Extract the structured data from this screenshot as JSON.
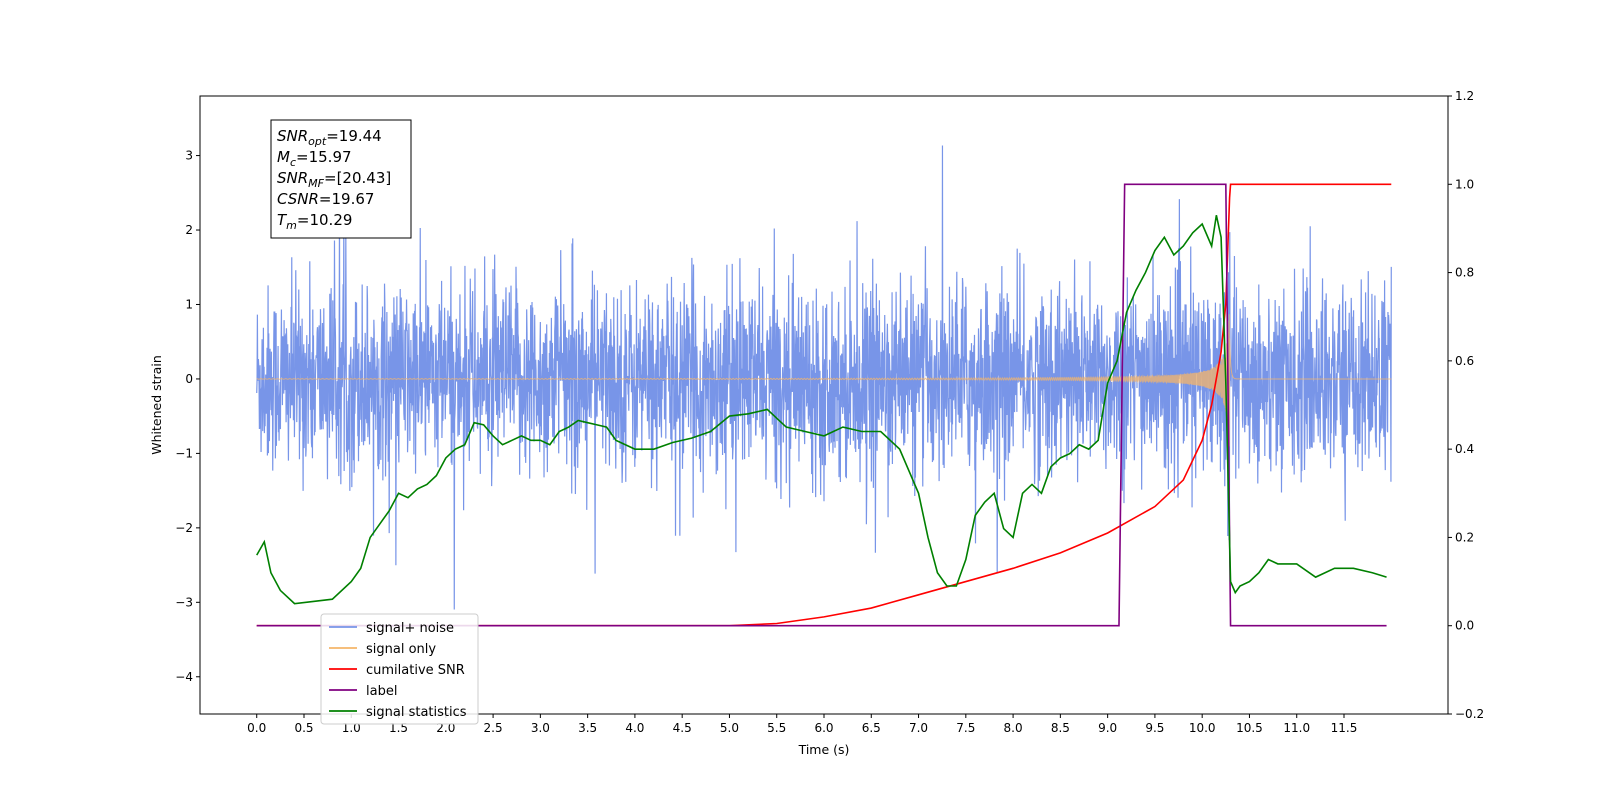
{
  "chart_data": {
    "type": "line",
    "xlabel": "Time (s)",
    "ylabel": "Whitened strain",
    "xlim": [
      -0.6,
      12.6
    ],
    "ylim": [
      -4.5,
      3.8
    ],
    "y2lim": [
      -0.2,
      1.2
    ],
    "x_ticks": [
      "0.0",
      "0.5",
      "1.0",
      "1.5",
      "2.0",
      "2.5",
      "3.0",
      "3.5",
      "4.0",
      "4.5",
      "5.0",
      "5.5",
      "6.0",
      "6.5",
      "7.0",
      "7.5",
      "8.0",
      "8.5",
      "9.0",
      "9.5",
      "10.0",
      "10.5",
      "11.0",
      "11.5"
    ],
    "y_ticks": [
      "3",
      "2",
      "1",
      "0",
      "−1",
      "−2",
      "−3",
      "−4"
    ],
    "y2_ticks": [
      "1.2",
      "1.0",
      "0.8",
      "0.6",
      "0.4",
      "0.2",
      "0.0",
      "−0.2"
    ],
    "legend_position": "lower-left",
    "annotation_box": {
      "lines": [
        {
          "base": "SNR",
          "sub": "opt",
          "value": "=19.44"
        },
        {
          "base": "M",
          "sub": "c",
          "value": "=15.97"
        },
        {
          "base": "SNR",
          "sub": "MF",
          "value": "=[20.43]"
        },
        {
          "base": "CSNR",
          "sub": "",
          "value": "=19.67"
        },
        {
          "base": "T",
          "sub": "m",
          "value": "=10.29"
        }
      ]
    },
    "series": [
      {
        "name": "signal+ noise",
        "color": "#7895e8",
        "axis": "left",
        "kind": "noise",
        "x_range": [
          0.0,
          12.0
        ],
        "typical_range": [
          -1.6,
          1.6
        ],
        "peak_range": [
          -4.1,
          3.5
        ]
      },
      {
        "name": "signal only",
        "color": "#f5b66a",
        "axis": "left",
        "kind": "chirp",
        "merger_time": 10.29
      },
      {
        "name": "cumilative SNR",
        "color": "#ff0000",
        "axis": "right",
        "x": [
          0.0,
          5.0,
          5.5,
          6.0,
          6.5,
          7.0,
          7.5,
          8.0,
          8.5,
          9.0,
          9.5,
          9.8,
          10.0,
          10.1,
          10.2,
          10.25,
          10.27,
          10.29,
          10.3,
          11.0,
          12.0
        ],
        "y": [
          0.0,
          0.0,
          0.005,
          0.02,
          0.04,
          0.07,
          0.1,
          0.13,
          0.165,
          0.21,
          0.27,
          0.33,
          0.42,
          0.5,
          0.62,
          0.73,
          0.85,
          0.97,
          1.0,
          1.0,
          1.0
        ]
      },
      {
        "name": "label",
        "color": "#800080",
        "axis": "right",
        "x": [
          0.0,
          9.12,
          9.18,
          10.25,
          10.3,
          11.95
        ],
        "y": [
          0.0,
          0.0,
          1.0,
          1.0,
          0.0,
          0.0
        ]
      },
      {
        "name": "signal statistics",
        "color": "#008000",
        "axis": "right",
        "x": [
          0.0,
          0.08,
          0.15,
          0.25,
          0.4,
          0.6,
          0.8,
          1.0,
          1.1,
          1.2,
          1.3,
          1.4,
          1.5,
          1.6,
          1.7,
          1.8,
          1.9,
          2.0,
          2.1,
          2.2,
          2.3,
          2.4,
          2.5,
          2.6,
          2.7,
          2.8,
          2.9,
          3.0,
          3.1,
          3.2,
          3.3,
          3.4,
          3.5,
          3.6,
          3.7,
          3.8,
          3.9,
          4.0,
          4.2,
          4.4,
          4.6,
          4.8,
          5.0,
          5.2,
          5.4,
          5.6,
          5.8,
          6.0,
          6.2,
          6.4,
          6.6,
          6.8,
          6.9,
          7.0,
          7.1,
          7.2,
          7.3,
          7.4,
          7.5,
          7.6,
          7.7,
          7.8,
          7.9,
          8.0,
          8.1,
          8.2,
          8.3,
          8.4,
          8.5,
          8.6,
          8.7,
          8.8,
          8.9,
          9.0,
          9.1,
          9.2,
          9.3,
          9.4,
          9.5,
          9.6,
          9.7,
          9.8,
          9.9,
          10.0,
          10.1,
          10.15,
          10.2,
          10.25,
          10.3,
          10.35,
          10.4,
          10.5,
          10.6,
          10.7,
          10.8,
          10.9,
          11.0,
          11.2,
          11.4,
          11.6,
          11.8,
          11.95
        ],
        "y": [
          0.16,
          0.19,
          0.12,
          0.08,
          0.05,
          0.055,
          0.06,
          0.1,
          0.13,
          0.2,
          0.23,
          0.26,
          0.3,
          0.29,
          0.31,
          0.32,
          0.34,
          0.38,
          0.4,
          0.41,
          0.46,
          0.455,
          0.43,
          0.41,
          0.42,
          0.43,
          0.42,
          0.42,
          0.41,
          0.44,
          0.45,
          0.465,
          0.46,
          0.455,
          0.45,
          0.42,
          0.41,
          0.4,
          0.4,
          0.415,
          0.425,
          0.44,
          0.475,
          0.48,
          0.49,
          0.45,
          0.44,
          0.43,
          0.45,
          0.44,
          0.44,
          0.4,
          0.35,
          0.3,
          0.2,
          0.12,
          0.09,
          0.09,
          0.15,
          0.25,
          0.28,
          0.3,
          0.22,
          0.2,
          0.3,
          0.32,
          0.3,
          0.36,
          0.38,
          0.39,
          0.41,
          0.4,
          0.42,
          0.55,
          0.6,
          0.71,
          0.76,
          0.8,
          0.85,
          0.88,
          0.84,
          0.86,
          0.89,
          0.91,
          0.86,
          0.93,
          0.88,
          0.55,
          0.1,
          0.075,
          0.09,
          0.1,
          0.12,
          0.15,
          0.14,
          0.14,
          0.14,
          0.11,
          0.13,
          0.13,
          0.12,
          0.11
        ]
      }
    ]
  }
}
